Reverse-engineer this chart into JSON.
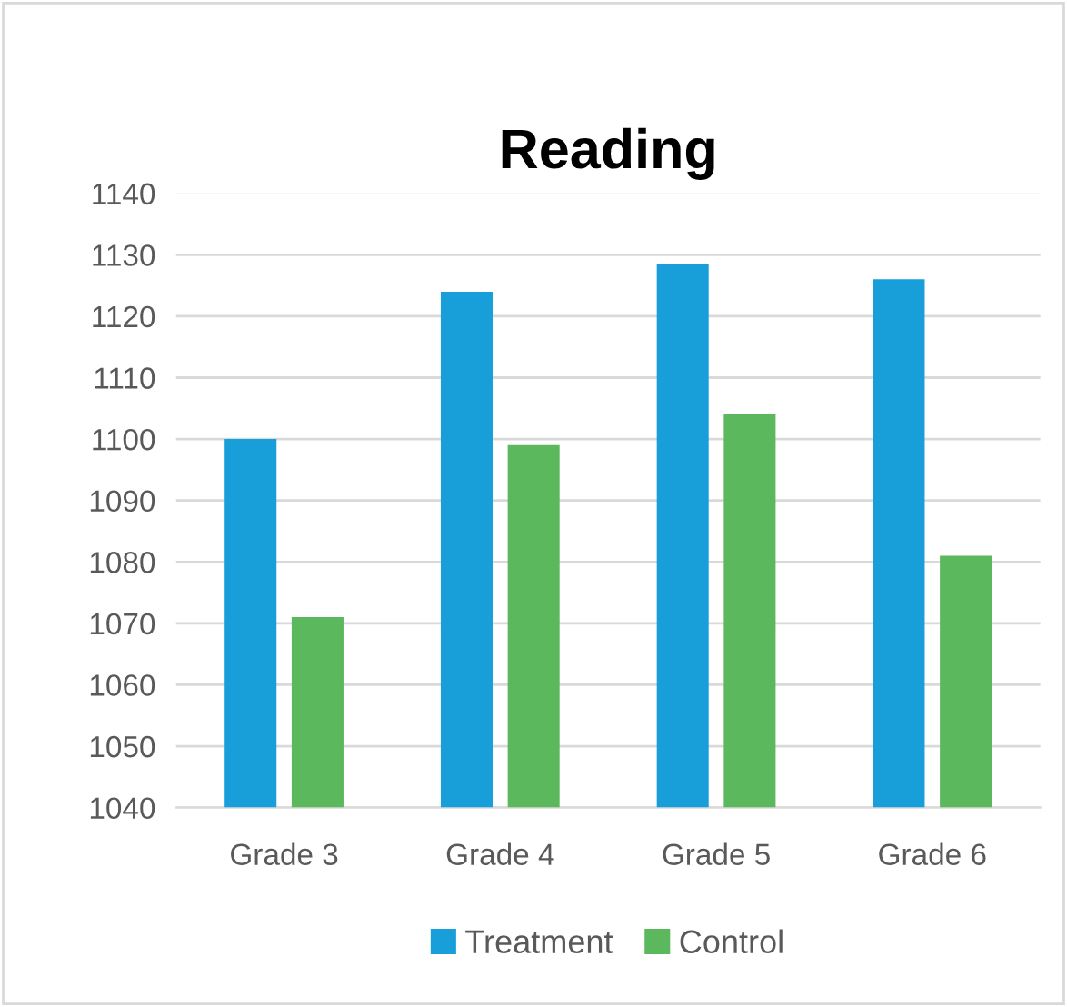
{
  "chart_data": {
    "type": "bar",
    "title": "Reading",
    "categories": [
      "Grade 3",
      "Grade 4",
      "Grade 5",
      "Grade 6"
    ],
    "series": [
      {
        "name": "Treatment",
        "color": "#189fda",
        "values": [
          1100,
          1124,
          1128.5,
          1126
        ]
      },
      {
        "name": "Control",
        "color": "#5cb85c",
        "values": [
          1071,
          1099,
          1104,
          1081
        ]
      }
    ],
    "ylim": [
      1040,
      1140
    ],
    "yticks": [
      1040,
      1050,
      1060,
      1070,
      1080,
      1090,
      1100,
      1110,
      1120,
      1130,
      1140
    ],
    "grid": "y",
    "legend": "bottom"
  }
}
